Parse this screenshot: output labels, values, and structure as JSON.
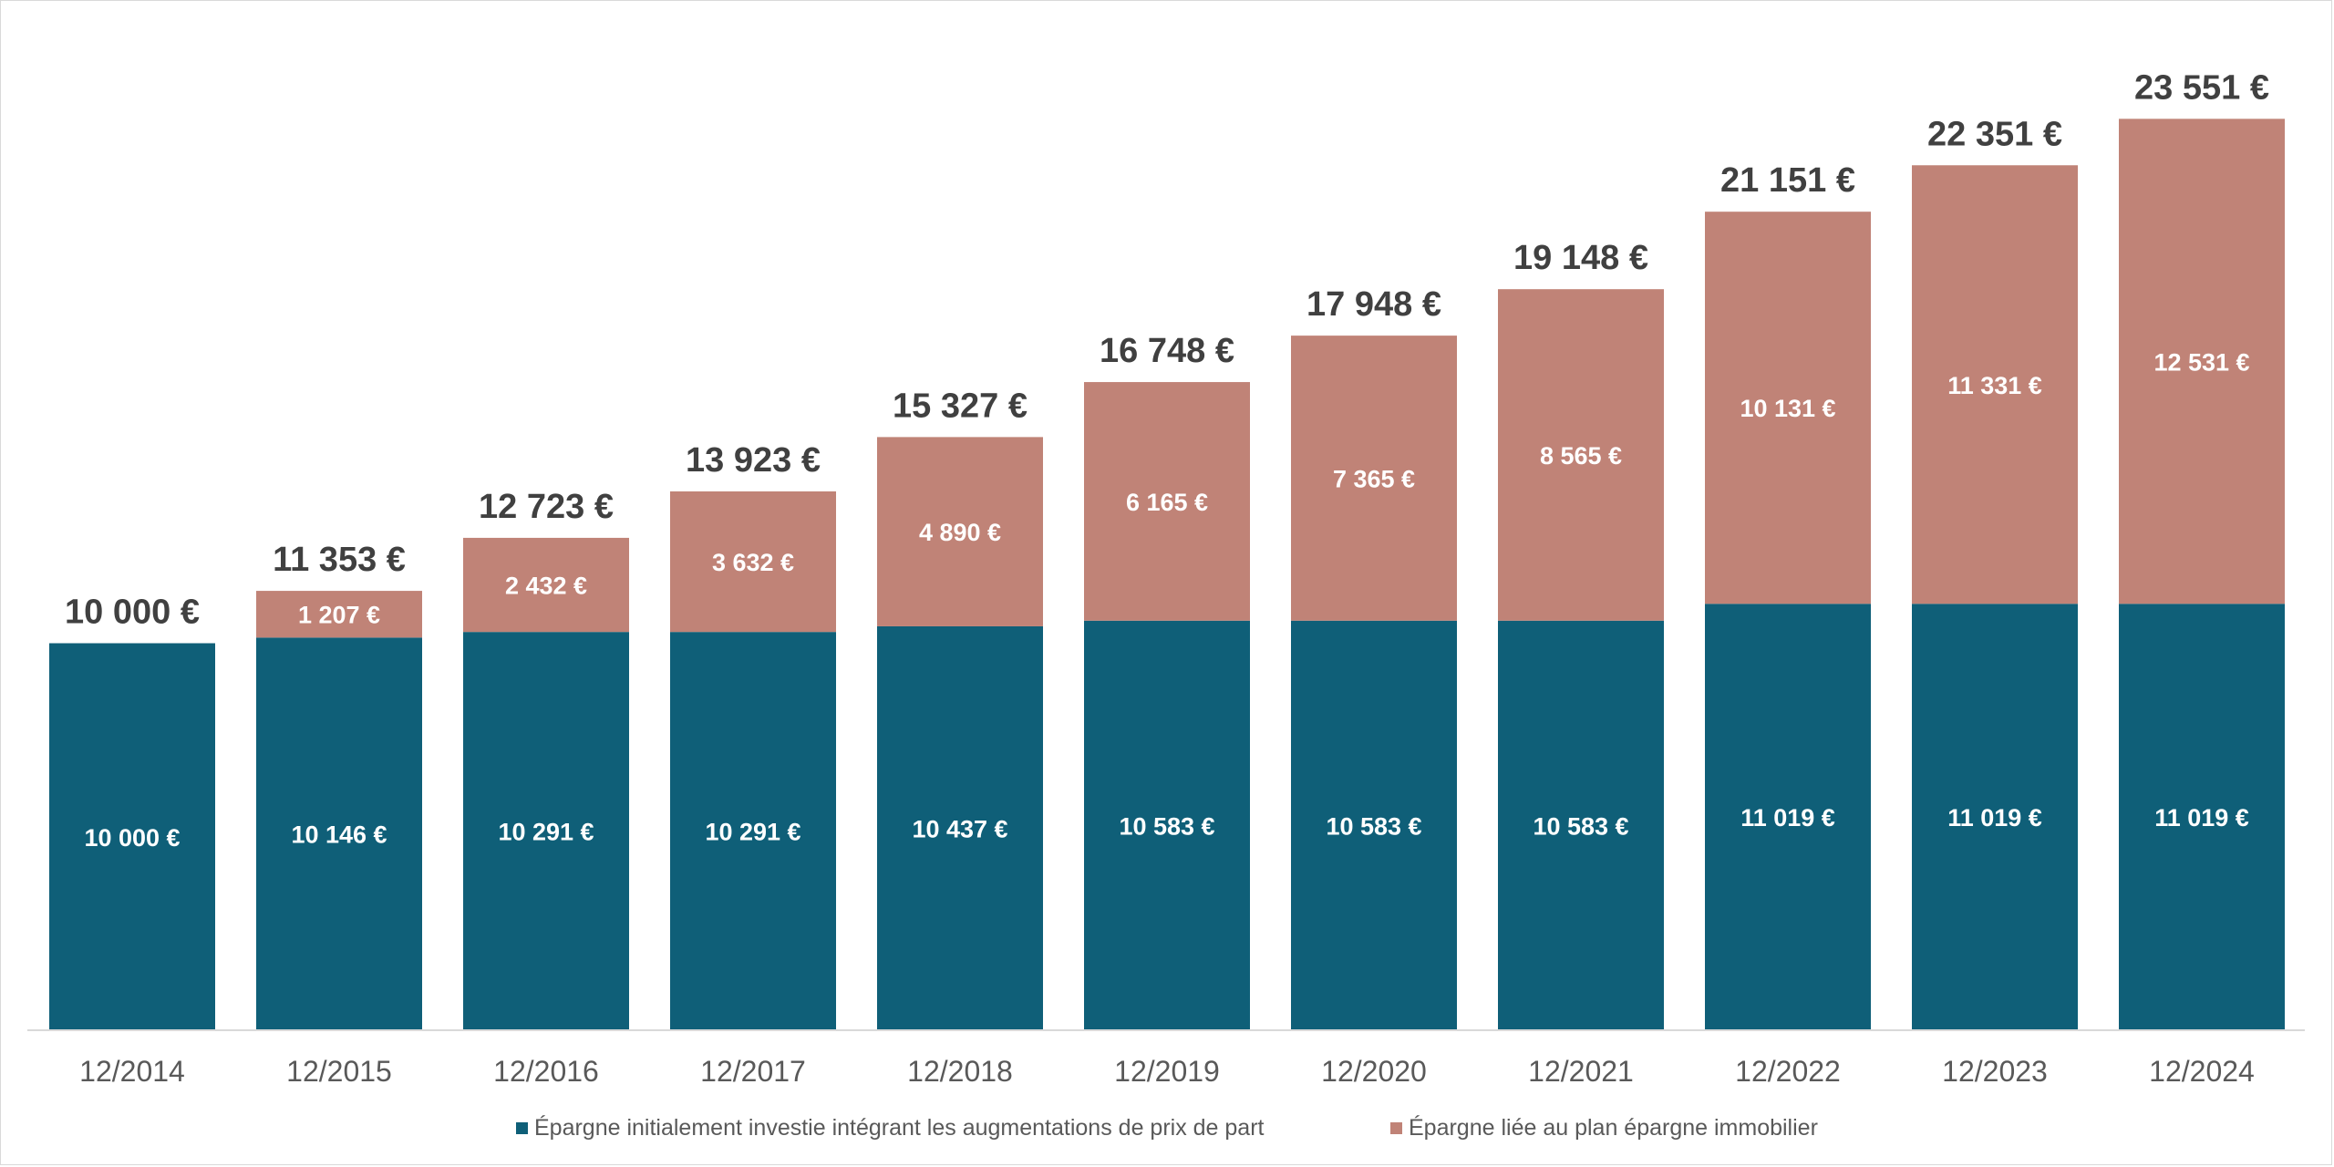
{
  "chart_data": {
    "type": "bar",
    "stacked": true,
    "categories": [
      "12/2014",
      "12/2015",
      "12/2016",
      "12/2017",
      "12/2018",
      "12/2019",
      "12/2020",
      "12/2021",
      "12/2022",
      "12/2023",
      "12/2024"
    ],
    "series": [
      {
        "name": "Épargne initialement investie intégrant les augmentations de prix de part",
        "color": "#0f5f78",
        "values": [
          10000,
          10146,
          10291,
          10291,
          10437,
          10583,
          10583,
          10583,
          11019,
          11019,
          11019
        ],
        "labels": [
          "10 000 €",
          "10 146 €",
          "10 291 €",
          "10 291 €",
          "10 437 €",
          "10 583 €",
          "10 583 €",
          "10 583 €",
          "11 019 €",
          "11 019 €",
          "11 019 €"
        ]
      },
      {
        "name": "Épargne liée au plan épargne immobilier",
        "color": "#c08377",
        "values": [
          0,
          1207,
          2432,
          3632,
          4890,
          6165,
          7365,
          8565,
          10131,
          11331,
          12531
        ],
        "labels": [
          "",
          "1 207 €",
          "2 432 €",
          "3 632 €",
          "4 890 €",
          "6 165 €",
          "7 365 €",
          "8 565 €",
          "10 131 €",
          "11 331 €",
          "12 531 €"
        ]
      }
    ],
    "totals": [
      10000,
      11353,
      12723,
      13923,
      15327,
      16748,
      17948,
      19148,
      21151,
      22351,
      23551
    ],
    "total_labels": [
      "10 000 €",
      "11 353 €",
      "12 723 €",
      "13 923 €",
      "15 327 €",
      "16 748 €",
      "17 948 €",
      "19 148 €",
      "21 151 €",
      "22 351 €",
      "23 551 €"
    ],
    "ylim": [
      0,
      24500
    ],
    "y_axis_visible": false,
    "grid": false,
    "legend": "bottom",
    "title": "",
    "xlabel": "",
    "ylabel": ""
  }
}
